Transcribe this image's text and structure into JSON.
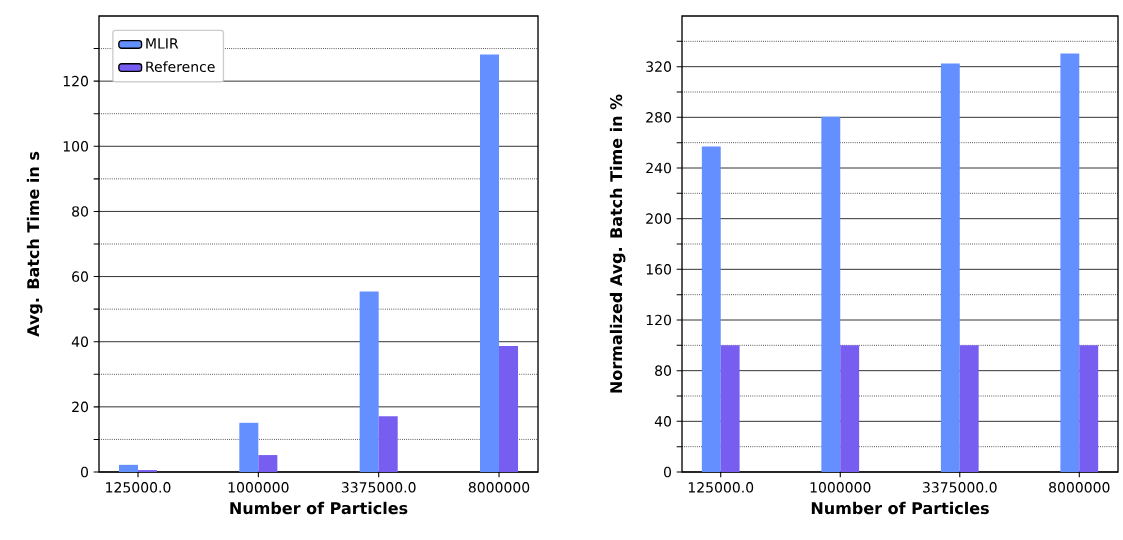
{
  "chart_data": [
    {
      "type": "bar",
      "xlabel": "Number of Particles",
      "ylabel": "Avg. Batch Time in s",
      "categories": [
        "125000.0",
        "1000000",
        "3375000.0",
        "8000000"
      ],
      "series": [
        {
          "name": "MLIR",
          "color": "#648fff",
          "values": [
            2.2,
            15.1,
            55.4,
            128.2
          ]
        },
        {
          "name": "Reference",
          "color": "#785ef0",
          "values": [
            0.6,
            5.2,
            17.1,
            38.7
          ]
        }
      ],
      "ylim": [
        0,
        140
      ],
      "yticks": [
        0,
        {
          "value": 10,
          "label": null
        },
        20,
        {
          "value": 30,
          "label": null
        },
        40,
        {
          "value": 50,
          "label": null
        },
        60,
        {
          "value": 70,
          "label": null
        },
        80,
        {
          "value": 90,
          "label": null
        },
        100,
        {
          "value": 110,
          "label": null
        },
        120,
        {
          "value": 130,
          "label": null
        }
      ],
      "grid": "y",
      "legend": "top left"
    },
    {
      "type": "bar",
      "xlabel": "Number of Particles",
      "ylabel": "Normalized Avg. Batch Time in %",
      "categories": [
        "125000.0",
        "1000000",
        "3375000.0",
        "8000000"
      ],
      "series": [
        {
          "color": "#648fff",
          "values": [
            256.9,
            280.4,
            322.5,
            330.4
          ]
        },
        {
          "color": "#785ef0",
          "values": [
            100,
            100,
            100,
            100
          ]
        }
      ],
      "ylim": [
        0,
        360
      ],
      "yticks": [
        0,
        {
          "value": 20,
          "label": null
        },
        40,
        {
          "value": 60,
          "label": null
        },
        80,
        {
          "value": 100,
          "label": null
        },
        120,
        {
          "value": 140,
          "label": null
        },
        160,
        {
          "value": 180,
          "label": null
        },
        200,
        {
          "value": 220,
          "label": null
        },
        240,
        {
          "value": 260,
          "label": null
        },
        280,
        {
          "value": 300,
          "label": null
        },
        320,
        {
          "value": 340,
          "label": null
        }
      ],
      "grid": "y",
      "legend": false
    }
  ]
}
